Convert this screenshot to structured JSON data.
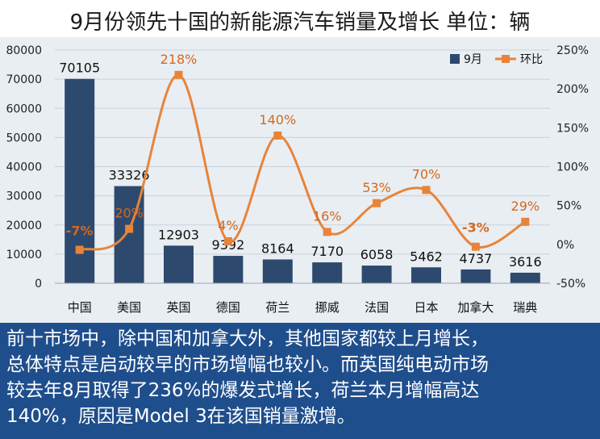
{
  "header": {
    "title": "9月份领先十国的新能源汽车销量及增长  单位：辆"
  },
  "chart_data": {
    "type": "bar",
    "categories": [
      "中国",
      "美国",
      "英国",
      "德国",
      "荷兰",
      "挪威",
      "法国",
      "日本",
      "加拿大",
      "瑞典"
    ],
    "series": [
      {
        "name": "9月",
        "kind": "bar",
        "axis": "left",
        "values": [
          70105,
          33326,
          12903,
          9392,
          8164,
          7170,
          6058,
          5462,
          4737,
          3616
        ],
        "labels": [
          "70105",
          "33326",
          "12903",
          "9392",
          "8164",
          "7170",
          "6058",
          "5462",
          "4737",
          "3616"
        ]
      },
      {
        "name": "环比",
        "kind": "line",
        "axis": "right",
        "values": [
          -7,
          20,
          218,
          4,
          140,
          16,
          53,
          70,
          -3,
          29
        ],
        "labels": [
          "-7%",
          "20%",
          "218%",
          "4%",
          "140%",
          "16%",
          "53%",
          "70%",
          "-3%",
          "29%"
        ]
      }
    ],
    "ylim_left": [
      0,
      80000
    ],
    "yticks_left": [
      "0",
      "10000",
      "20000",
      "30000",
      "40000",
      "50000",
      "60000",
      "70000",
      "80000"
    ],
    "ylim_right": [
      -50,
      250
    ],
    "yticks_right": [
      "-50%",
      "0%",
      "50%",
      "100%",
      "150%",
      "200%",
      "250%"
    ],
    "legend_position": "top-right",
    "colors": {
      "bar": "#2d4a6e",
      "line": "#e8843a",
      "line_label": "#d2691e"
    }
  },
  "caption": {
    "lines": [
      "前十市场中，除中国和加拿大外，其他国家都较上月增长，",
      "总体特点是启动较早的市场增幅也较小。而英国纯电动市场",
      "较去年8月取得了236%的爆发式增长，荷兰本月增幅高达",
      "140%，原因是Model 3在该国销量激增。"
    ]
  }
}
